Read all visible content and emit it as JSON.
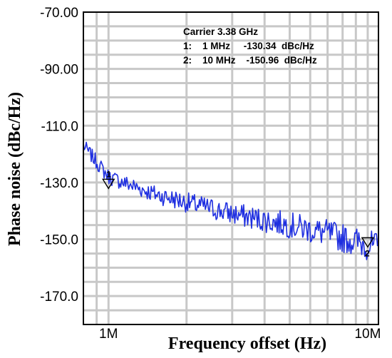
{
  "chart_data": {
    "type": "line",
    "title": "",
    "xlabel": "Frequency offset (Hz)",
    "ylabel": "Phase noise (dBc/Hz)",
    "x_scale": "log",
    "xlim": [
      800000,
      11000000
    ],
    "ylim": [
      -180,
      -70
    ],
    "y_ticks": [
      -70,
      -90,
      -110,
      -130,
      -150,
      -170
    ],
    "y_tick_labels": [
      "-70.00",
      "-90.00",
      "-110.0",
      "-130.0",
      "-150.0",
      "-170.0"
    ],
    "x_ticks": [
      1000000,
      10000000
    ],
    "x_tick_labels": [
      "1M",
      "10M"
    ],
    "grid": true,
    "series_color": "#1f2fe0",
    "series": [
      {
        "name": "",
        "x": [
          800000,
          1000000,
          1500000,
          2000000,
          3000000,
          5000000,
          7000000,
          10000000,
          11000000
        ],
        "y": [
          -117,
          -128,
          -134,
          -137,
          -141,
          -145,
          -148,
          -152,
          -153
        ]
      }
    ],
    "annotations": {
      "carrier": "Carrier  3.38 GHz",
      "markers": [
        {
          "label": "1",
          "line": "1:    1 MHz     -130.34  dBc/Hz",
          "x": 1000000,
          "y": -130.34
        },
        {
          "label": "2",
          "line": "2:    10 MHz    -150.96  dBc/Hz",
          "x": 10000000,
          "y": -150.96
        }
      ]
    }
  }
}
